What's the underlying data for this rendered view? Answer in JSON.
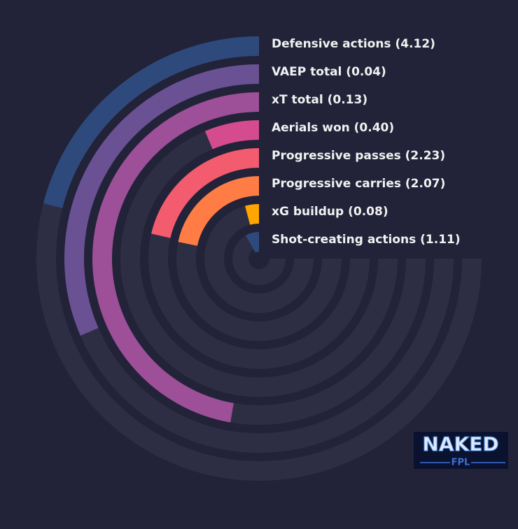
{
  "chart_data": {
    "type": "radial_bar",
    "categories": [
      "Defensive actions (4.12)",
      "VAEP total (0.04)",
      "xT total (0.13)",
      "Aerials won (0.40)",
      "Progressive passes (2.23)",
      "Progressive carries (2.07)",
      "xG buildup (0.08)",
      "Shot-creating actions (1.11)"
    ],
    "values": [
      28,
      42,
      63,
      8.5,
      28.5,
      29,
      5.5,
      11
    ],
    "colors": [
      "#2e4a7c",
      "#6a5193",
      "#9d4f98",
      "#d44c8d",
      "#f35b6f",
      "#ff7d45",
      "#ffa600",
      "#2e4a7c"
    ],
    "ylim": [
      0,
      100
    ],
    "track_color": "#2d2e44"
  },
  "logo": {
    "top": "NAKED",
    "bottom": "FPL"
  }
}
